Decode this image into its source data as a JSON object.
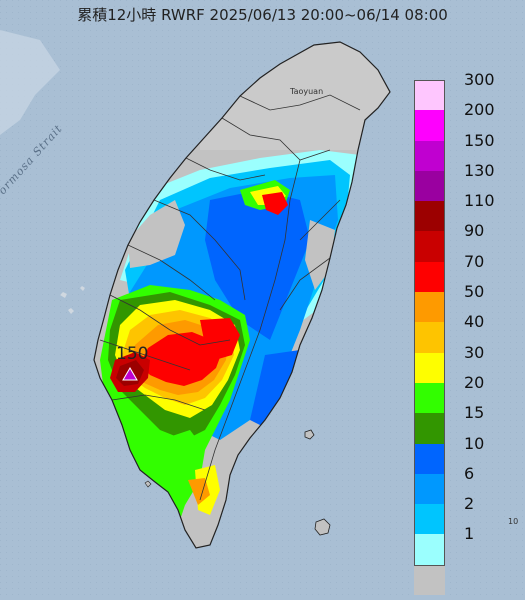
{
  "title": "累積12小時 RWRF 2025/06/13 20:00~06/14 08:00",
  "legend": {
    "items": [
      {
        "label": "300",
        "color": "#fec6fe"
      },
      {
        "label": "200",
        "color": "#fe00fe"
      },
      {
        "label": "150",
        "color": "#c000d0"
      },
      {
        "label": "130",
        "color": "#9a00a0"
      },
      {
        "label": "110",
        "color": "#9c0000"
      },
      {
        "label": "90",
        "color": "#c90000"
      },
      {
        "label": "70",
        "color": "#fe0000"
      },
      {
        "label": "50",
        "color": "#fe9a00"
      },
      {
        "label": "40",
        "color": "#fec400"
      },
      {
        "label": "30",
        "color": "#fefe00"
      },
      {
        "label": "20",
        "color": "#32fe00"
      },
      {
        "label": "15",
        "color": "#329600"
      },
      {
        "label": "10",
        "color": "#0065fe"
      },
      {
        "label": "6",
        "color": "#0098fe"
      },
      {
        "label": "2",
        "color": "#00c5fe"
      },
      {
        "label": "1",
        "color": "#9bfffe"
      },
      {
        "label": "",
        "color": "#c2c2c2"
      }
    ]
  },
  "peak": {
    "label": "150"
  },
  "strait_label": "Formosa Strait",
  "city_label": "Taoyuan",
  "scale_mark": "10"
}
